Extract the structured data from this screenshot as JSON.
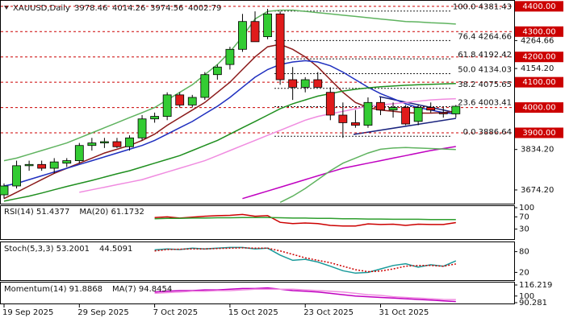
{
  "chart_data": [
    {
      "type": "candlestick",
      "title": "XAUUSD,Daily",
      "header_ohlc": [
        3978.46,
        4014.26,
        3974.56,
        4002.79
      ],
      "categories": [
        "19 Sep 2025",
        null,
        null,
        null,
        null,
        null,
        "29 Sep 2025",
        null,
        null,
        null,
        null,
        null,
        "7 Oct 2025",
        null,
        null,
        null,
        null,
        null,
        "15 Oct 2025",
        null,
        null,
        null,
        null,
        null,
        "23 Oct 2025",
        null,
        null,
        null,
        null,
        null,
        "31 Oct 2025",
        null,
        null,
        null,
        null,
        null,
        null
      ],
      "open": [
        3655,
        3690,
        3770,
        3775,
        3760,
        3780,
        3790,
        3850,
        3860,
        3865,
        3845,
        3880,
        3955,
        3965,
        4050,
        4010,
        4040,
        4130,
        4170,
        4230,
        4340,
        4280,
        4370,
        4110,
        4080,
        4110,
        4060,
        3970,
        3940,
        3930,
        4020,
        3990,
        4000,
        3945,
        4000,
        3980,
        3975
      ],
      "high": [
        3700,
        3790,
        3790,
        3790,
        3800,
        3800,
        3860,
        3880,
        3880,
        3880,
        3890,
        3970,
        3980,
        4060,
        4060,
        4050,
        4140,
        4170,
        4240,
        4370,
        4380,
        4390,
        4380,
        4160,
        4120,
        4140,
        4080,
        4020,
        3990,
        4040,
        4040,
        4020,
        4010,
        4010,
        4020,
        4000,
        4010
      ],
      "low": [
        3640,
        3680,
        3750,
        3750,
        3740,
        3765,
        3780,
        3830,
        3840,
        3840,
        3830,
        3870,
        3940,
        3950,
        4000,
        4000,
        4030,
        4110,
        4150,
        4220,
        4260,
        4270,
        4090,
        4030,
        4060,
        4080,
        3950,
        3880,
        3920,
        3920,
        3970,
        3960,
        3930,
        3930,
        3980,
        3960,
        3960
      ],
      "close": [
        3690,
        3770,
        3775,
        3760,
        3785,
        3790,
        3850,
        3860,
        3865,
        3845,
        3880,
        3955,
        3965,
        4050,
        4010,
        4040,
        4130,
        4160,
        4230,
        4340,
        4260,
        4370,
        4110,
        4080,
        4110,
        4080,
        3970,
        3940,
        3930,
        4020,
        3990,
        4000,
        3935,
        4000,
        3990,
        3975,
        4005
      ],
      "up_color": "#33cc33",
      "down_color": "#e01b1b",
      "series": [
        {
          "color": "#8b1a1a",
          "values": [
            3640,
            3665,
            3690,
            3715,
            3740,
            3760,
            3780,
            3800,
            3820,
            3835,
            3850,
            3870,
            3895,
            3930,
            3960,
            3990,
            4020,
            4060,
            4100,
            4150,
            4200,
            4240,
            4250,
            4230,
            4200,
            4160,
            4110,
            4060,
            4020,
            4000,
            3990,
            3985,
            3980,
            3978,
            3978,
            3980,
            3985
          ]
        },
        {
          "color": "#1f2fbf",
          "values": [
            3690,
            3700,
            3715,
            3730,
            3745,
            3760,
            3775,
            3790,
            3805,
            3820,
            3835,
            3850,
            3870,
            3895,
            3920,
            3945,
            3975,
            4005,
            4040,
            4080,
            4120,
            4150,
            4170,
            4180,
            4185,
            4180,
            4165,
            4140,
            4110,
            4080,
            4055,
            4035,
            4015,
            4000,
            3990,
            3980,
            3975
          ]
        },
        {
          "color": "#1f8f1f",
          "values": [
            3630,
            3640,
            3650,
            3662,
            3675,
            3688,
            3700,
            3712,
            3725,
            3738,
            3750,
            3765,
            3780,
            3795,
            3810,
            3830,
            3850,
            3870,
            3895,
            3920,
            3945,
            3970,
            3995,
            4015,
            4030,
            4045,
            4055,
            4065,
            4072,
            4078,
            4082,
            4085,
            4088,
            4090,
            4092,
            4093,
            4095
          ]
        },
        {
          "color": "#f08ce0",
          "values": [
            null,
            null,
            null,
            null,
            null,
            null,
            3665,
            3675,
            3685,
            3695,
            3705,
            3715,
            3730,
            3745,
            3760,
            3775,
            3790,
            3810,
            3830,
            3850,
            3870,
            3890,
            3910,
            3930,
            3950,
            3965,
            3975,
            3985,
            3995,
            4005,
            4010,
            4015,
            4020,
            4025,
            4030,
            4033,
            4035
          ]
        },
        {
          "color": "#c000c0",
          "values": [
            null,
            null,
            null,
            null,
            null,
            null,
            null,
            null,
            null,
            null,
            null,
            null,
            null,
            null,
            null,
            null,
            null,
            null,
            null,
            3640,
            3655,
            3670,
            3685,
            3700,
            3715,
            3730,
            3745,
            3760,
            3770,
            3780,
            3790,
            3800,
            3810,
            3820,
            3830,
            3838,
            3846
          ]
        },
        {
          "color": "#5fb35f",
          "values": [
            3790,
            3800,
            3815,
            3830,
            3845,
            3860,
            3880,
            3900,
            3920,
            3940,
            3960,
            3980,
            4000,
            4030,
            4060,
            4090,
            4130,
            4170,
            4220,
            4280,
            4350,
            4380,
            4385,
            4385,
            4380,
            4375,
            4370,
            4365,
            4360,
            4355,
            4350,
            4345,
            4340,
            4338,
            4335,
            4333,
            4330
          ]
        },
        {
          "color": "#5fb35f",
          "values": [
            null,
            null,
            null,
            null,
            null,
            null,
            null,
            null,
            null,
            null,
            null,
            null,
            null,
            null,
            null,
            null,
            null,
            null,
            null,
            null,
            null,
            null,
            3625,
            3650,
            3680,
            3715,
            3750,
            3780,
            3800,
            3820,
            3835,
            3840,
            3842,
            3840,
            3838,
            3836,
            3834
          ]
        }
      ],
      "fib_levels": [
        {
          "value": 4381.43,
          "label": "100.0 4381.43"
        },
        {
          "value": 4264.66,
          "label": "76.4 4264.66"
        },
        {
          "value": 4192.42,
          "label": "61.8 4192.42"
        },
        {
          "value": 4134.03,
          "label": "50.0 4134.03"
        },
        {
          "value": 4075.65,
          "label": "38.2 4075.65"
        },
        {
          "value": 4003.41,
          "label": "23.6 4003.41"
        },
        {
          "value": 3886.64,
          "label": "0.0 3886.64"
        }
      ],
      "level_ticks": [
        {
          "value": 4400,
          "label": "4400.00"
        },
        {
          "value": 4300,
          "label": "4300.00"
        },
        {
          "value": 4200,
          "label": "4200.00"
        },
        {
          "value": 4100,
          "label": "4100.00"
        },
        {
          "value": 4000,
          "label": "4000.00"
        },
        {
          "value": 3900,
          "label": "3900.00"
        }
      ],
      "level_color": "#cc0000",
      "yticks": [
        4264.66,
        {
          "value": 4154.2,
          "label": "4154.20"
        },
        {
          "value": 3834.2,
          "label": "3834.20"
        },
        {
          "value": 3674.2,
          "label": "3674.20"
        }
      ],
      "ylim": [
        3620,
        4425
      ]
    },
    {
      "type": "line",
      "ylim": [
        0,
        100
      ],
      "yticks": [
        100,
        70,
        30
      ],
      "series": [
        {
          "name": "RSI(14) 51.4377",
          "color": "#cc0000",
          "values": [
            null,
            null,
            null,
            null,
            null,
            null,
            null,
            null,
            null,
            null,
            null,
            null,
            68,
            70,
            66,
            69,
            72,
            74,
            75,
            78,
            72,
            74,
            52,
            48,
            50,
            48,
            42,
            40,
            40,
            47,
            45,
            46,
            42,
            46,
            45,
            45,
            51.44
          ]
        },
        {
          "name": "MA(20) 61.1732",
          "color": "#2e9e2e",
          "values": [
            null,
            null,
            null,
            null,
            null,
            null,
            null,
            null,
            null,
            null,
            null,
            null,
            64,
            65,
            65,
            66,
            66,
            67,
            67,
            68,
            68,
            68,
            67,
            66,
            66,
            65,
            65,
            64,
            64,
            63,
            63,
            62,
            62,
            62,
            61,
            61,
            61.17
          ]
        }
      ]
    },
    {
      "type": "line",
      "ylim": [
        0,
        100
      ],
      "yticks": [
        80,
        20
      ],
      "series": [
        {
          "name": "Stoch(5,3,3) 53.2001",
          "color": "#1a9a9a",
          "values": [
            null,
            null,
            null,
            null,
            null,
            null,
            null,
            null,
            null,
            null,
            null,
            null,
            85,
            88,
            86,
            90,
            88,
            90,
            92,
            92,
            88,
            90,
            70,
            55,
            58,
            50,
            38,
            25,
            18,
            20,
            30,
            40,
            45,
            35,
            42,
            38,
            53.2
          ]
        },
        {
          "name": "44.5091",
          "color": "#cc0000",
          "dash": "2,2",
          "values": [
            null,
            null,
            null,
            null,
            null,
            null,
            null,
            null,
            null,
            null,
            null,
            null,
            82,
            86,
            87,
            88,
            88,
            89,
            90,
            91,
            90,
            90,
            82,
            72,
            62,
            55,
            48,
            38,
            28,
            22,
            24,
            30,
            38,
            40,
            40,
            38,
            44.5
          ]
        }
      ]
    },
    {
      "type": "line",
      "ylim": [
        90.281,
        116.219
      ],
      "yticks": [
        116.219,
        100,
        90.281
      ],
      "series": [
        {
          "name": "Momentum(14) 91.8868",
          "color": "#c000c0",
          "values": [
            null,
            null,
            null,
            null,
            null,
            null,
            null,
            null,
            null,
            null,
            null,
            null,
            106,
            107,
            108,
            108,
            109,
            109,
            110,
            111,
            111,
            112,
            110,
            108,
            107,
            106,
            104,
            102,
            100,
            99,
            98,
            97,
            96,
            95,
            94,
            93,
            91.89
          ]
        },
        {
          "name": "MA(7) 94.8454",
          "color": "#f08ce0",
          "values": [
            null,
            null,
            null,
            null,
            null,
            null,
            null,
            null,
            null,
            null,
            null,
            null,
            104,
            105,
            106,
            107,
            107,
            108,
            108,
            109,
            110,
            110,
            110,
            110,
            109,
            108,
            107,
            106,
            104,
            102,
            101,
            99,
            98,
            97,
            96,
            95,
            94.85
          ]
        }
      ]
    }
  ]
}
